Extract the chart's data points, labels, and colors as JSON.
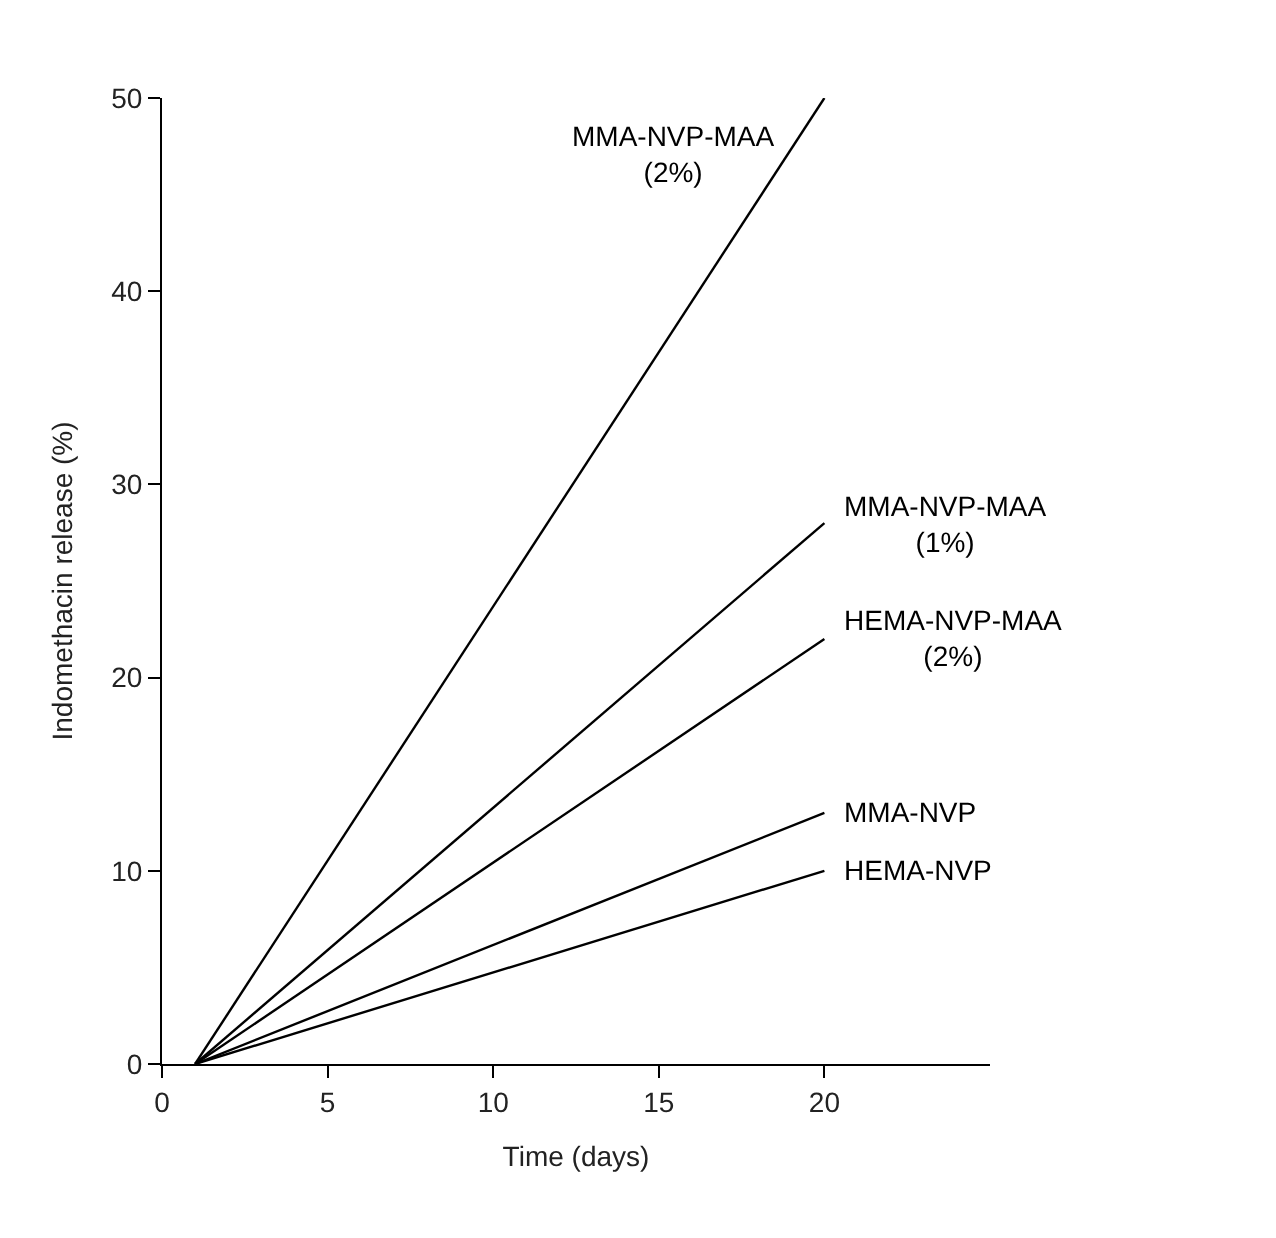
{
  "chart_data": {
    "type": "line",
    "xlabel": "Time (days)",
    "ylabel": "Indomethacin release (%)",
    "x": [
      1,
      20
    ],
    "series": [
      {
        "name": "MMA-NVP-MAA\n(2%)",
        "color": "#000000",
        "values": [
          0,
          50
        ]
      },
      {
        "name": "MMA-NVP-MAA\n(1%)",
        "color": "#000000",
        "values": [
          0,
          28
        ]
      },
      {
        "name": "HEMA-NVP-MAA\n(2%)",
        "color": "#000000",
        "values": [
          0,
          22
        ]
      },
      {
        "name": "MMA-NVP",
        "color": "#000000",
        "values": [
          0,
          13
        ]
      },
      {
        "name": "HEMA-NVP",
        "color": "#000000",
        "values": [
          0,
          10
        ]
      }
    ],
    "xlim": [
      0,
      25
    ],
    "xticks": [
      0,
      5,
      10,
      15,
      20
    ],
    "ylim": [
      0,
      50
    ],
    "yticks": [
      0,
      10,
      20,
      30,
      40,
      50
    ],
    "legend": false,
    "marker": "none",
    "line_style": "solid"
  }
}
